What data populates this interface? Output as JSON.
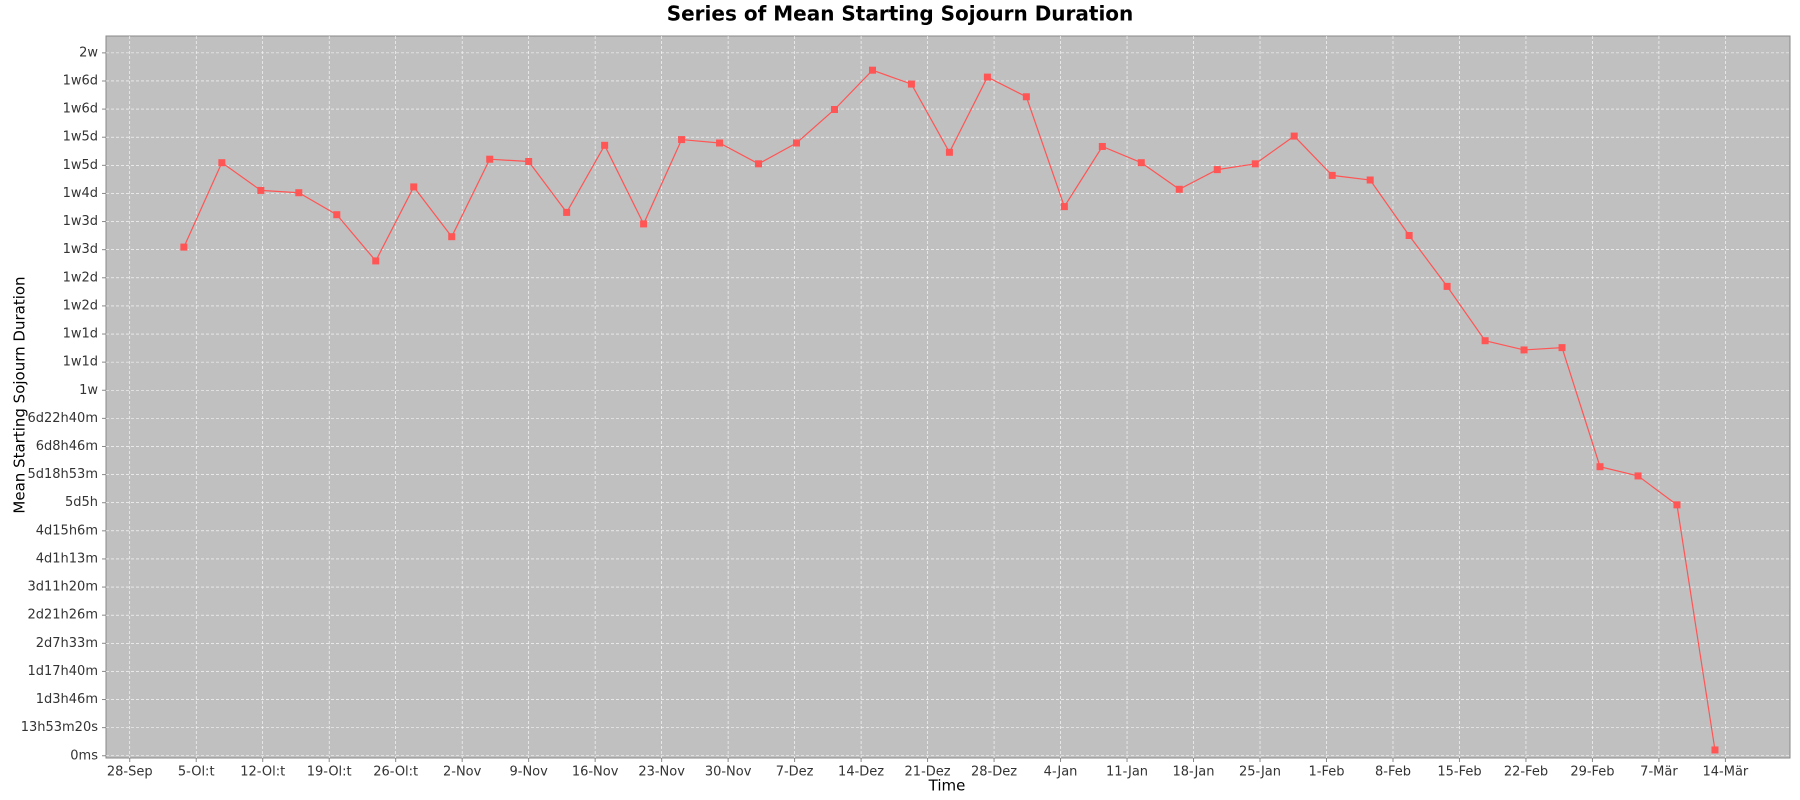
{
  "chart_data": {
    "type": "line",
    "title": "Series of Mean Starting Sojourn Duration",
    "x_label": "Time",
    "y_label": "Mean Starting Sojourn Duration",
    "color": "#ff5555",
    "plot_background": "#c0c0c0",
    "grid": true,
    "markers": true,
    "x": [
      5.7,
      9.7,
      13.8,
      17.8,
      21.8,
      25.9,
      29.9,
      33.9,
      37.9,
      42.0,
      46.0,
      50.0,
      54.1,
      58.1,
      62.1,
      66.2,
      70.2,
      74.2,
      78.2,
      82.3,
      86.3,
      90.3,
      94.4,
      98.4,
      102.4,
      106.5,
      110.5,
      114.5,
      118.5,
      122.6,
      126.6,
      130.6,
      134.7,
      138.7,
      142.7,
      146.8,
      150.8,
      154.8,
      158.8,
      162.9,
      166.9
    ],
    "values": [
      904600,
      1054700,
      1005400,
      1001300,
      962200,
      880000,
      1011600,
      923100,
      1060900,
      1056800,
      966300,
      1085600,
      945800,
      1095800,
      1089700,
      1052700,
      1089700,
      1149300,
      1219200,
      1194500,
      1073200,
      1206900,
      1171900,
      976600,
      1083500,
      1054700,
      1007400,
      1042400,
      1052700,
      1102000,
      1032100,
      1023900,
      925200,
      834700,
      738100,
      721700,
      725800,
      514000,
      497600,
      446200,
      10300
    ],
    "xlim": [
      -2.5,
      174.8
    ],
    "xticks": [
      {
        "value": 0,
        "label": "28-Sep"
      },
      {
        "value": 7,
        "label": "5-Ol:t"
      },
      {
        "value": 14,
        "label": "12-Ol:t"
      },
      {
        "value": 21,
        "label": "19-Ol:t"
      },
      {
        "value": 28,
        "label": "26-Ol:t"
      },
      {
        "value": 35,
        "label": "2-Nov"
      },
      {
        "value": 42,
        "label": "9-Nov"
      },
      {
        "value": 49,
        "label": "16-Nov"
      },
      {
        "value": 56,
        "label": "23-Nov"
      },
      {
        "value": 63,
        "label": "30-Nov"
      },
      {
        "value": 70,
        "label": "7-Dez"
      },
      {
        "value": 77,
        "label": "14-Dez"
      },
      {
        "value": 84,
        "label": "21-Dez"
      },
      {
        "value": 91,
        "label": "28-Dez"
      },
      {
        "value": 98,
        "label": "4-Jan"
      },
      {
        "value": 105,
        "label": "11-Jan"
      },
      {
        "value": 112,
        "label": "18-Jan"
      },
      {
        "value": 119,
        "label": "25-Jan"
      },
      {
        "value": 126,
        "label": "1-Feb"
      },
      {
        "value": 133,
        "label": "8-Feb"
      },
      {
        "value": 140,
        "label": "15-Feb"
      },
      {
        "value": 147,
        "label": "22-Feb"
      },
      {
        "value": 154,
        "label": "29-Feb"
      },
      {
        "value": 161,
        "label": "7-Mär"
      },
      {
        "value": 168,
        "label": "14-Mär"
      }
    ],
    "ylim": [
      -4000,
      1280000
    ],
    "yticks": [
      {
        "value": 0,
        "label": "0ms"
      },
      {
        "value": 50000,
        "label": "13h53m20s"
      },
      {
        "value": 100000,
        "label": "1d3h46m"
      },
      {
        "value": 150000,
        "label": "1d17h40m"
      },
      {
        "value": 200000,
        "label": "2d7h33m"
      },
      {
        "value": 250000,
        "label": "2d21h26m"
      },
      {
        "value": 300000,
        "label": "3d11h20m"
      },
      {
        "value": 350000,
        "label": "4d1h13m"
      },
      {
        "value": 400000,
        "label": "4d15h6m"
      },
      {
        "value": 450000,
        "label": "5d5h"
      },
      {
        "value": 500000,
        "label": "5d18h53m"
      },
      {
        "value": 550000,
        "label": "6d8h46m"
      },
      {
        "value": 600000,
        "label": "6d22h40m"
      },
      {
        "value": 650000,
        "label": "1w"
      },
      {
        "value": 700000,
        "label": "1w1d"
      },
      {
        "value": 750000,
        "label": "1w1d"
      },
      {
        "value": 800000,
        "label": "1w2d"
      },
      {
        "value": 850000,
        "label": "1w2d"
      },
      {
        "value": 900000,
        "label": "1w3d"
      },
      {
        "value": 950000,
        "label": "1w3d"
      },
      {
        "value": 1000000,
        "label": "1w4d"
      },
      {
        "value": 1050000,
        "label": "1w5d"
      },
      {
        "value": 1100000,
        "label": "1w5d"
      },
      {
        "value": 1150000,
        "label": "1w6d"
      },
      {
        "value": 1200000,
        "label": "1w6d"
      },
      {
        "value": 1250000,
        "label": "2w"
      }
    ]
  }
}
